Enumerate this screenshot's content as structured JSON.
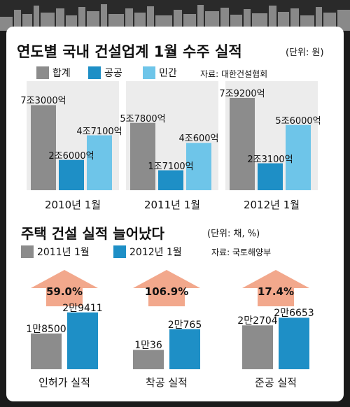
{
  "colors": {
    "gray": "#8c8c8c",
    "blue": "#1e8fc6",
    "light_blue": "#6ec5e9",
    "arrow": "#f2a88c",
    "panel_bg": "#ececec"
  },
  "chart_data": [
    {
      "type": "bar",
      "title": "연도별 국내 건설업계 1월 수주 실적",
      "unit": "(단위: 원)",
      "source": "자료: 대한건설협회",
      "categories": [
        "2010년 1월",
        "2011년 1월",
        "2012년 1월"
      ],
      "series": [
        {
          "name": "합계",
          "values": [
            73000,
            57800,
            79200
          ],
          "labels": [
            "7조3000억",
            "5조7800억",
            "7조9200억"
          ]
        },
        {
          "name": "공공",
          "values": [
            26000,
            17100,
            23100
          ],
          "labels": [
            "2조6000억",
            "1조7100억",
            "2조3100억"
          ]
        },
        {
          "name": "민간",
          "values": [
            47100,
            40600,
            56000
          ],
          "labels": [
            "4조7100억",
            "4조600억",
            "5조6000억"
          ]
        }
      ],
      "ylim": [
        0,
        90000
      ]
    },
    {
      "type": "bar",
      "title": "주택 건설 실적 늘어났다",
      "unit": "(단위: 채, %)",
      "source": "자료: 국토해양부",
      "categories": [
        "인허가 실적",
        "착공 실적",
        "준공 실적"
      ],
      "series": [
        {
          "name": "2011년 1월",
          "values": [
            18500,
            10036,
            22704
          ],
          "labels": [
            "1만8500",
            "1만36",
            "2만2704"
          ]
        },
        {
          "name": "2012년 1월",
          "values": [
            29411,
            20765,
            26653
          ],
          "labels": [
            "2만9411",
            "2만765",
            "2만6653"
          ]
        }
      ],
      "growth": [
        "59.0%",
        "106.9%",
        "17.4%"
      ],
      "ylim": [
        0,
        38000
      ]
    }
  ]
}
